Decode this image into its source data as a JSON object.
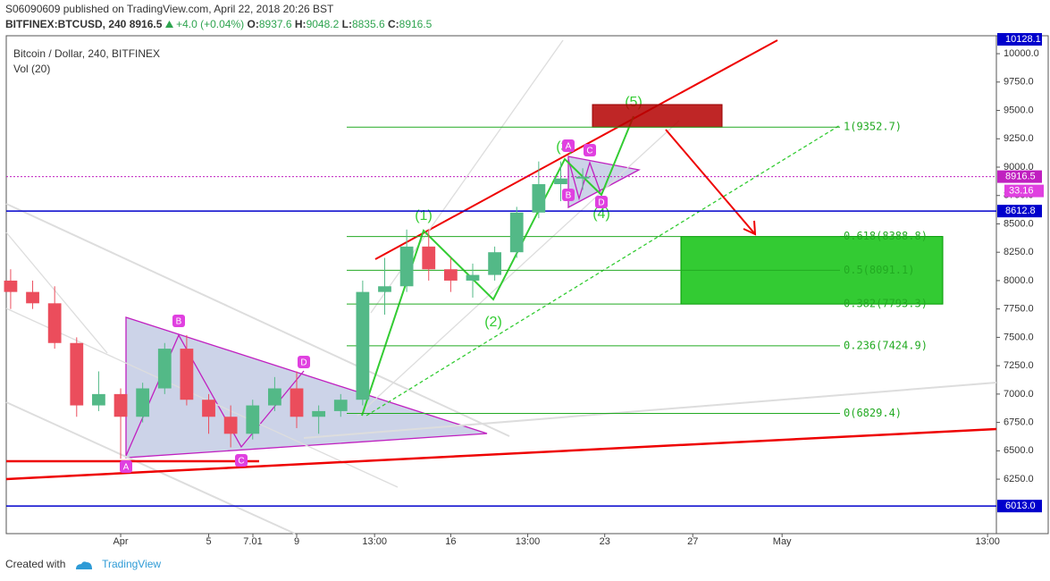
{
  "header": {
    "publisher": "S06090609 published on TradingView.com, April 22, 2018 20:26 BST",
    "symbol": "BITFINEX:BTCUSD, 240",
    "price": 8916.5,
    "change": "+4.0 (+0.04%)",
    "ohlc": [
      {
        "label": "O:",
        "value": 8937.6
      },
      {
        "label": "H:",
        "value": 9048.2
      },
      {
        "label": "L:",
        "value": 8835.6
      },
      {
        "label": "C:",
        "value": 8916.5
      }
    ]
  },
  "footer": {
    "created": "Created with",
    "brand": "TradingView"
  },
  "chart_data": {
    "type": "candlestick",
    "title": "Bitcoin / Dollar, 240, BITFINEX",
    "indicator": "Vol (20)",
    "up_color": "#53b987",
    "down_color": "#eb4d5c",
    "x": [
      -4,
      -3,
      -2,
      -1,
      0,
      1,
      2,
      3,
      4,
      5,
      6,
      7,
      8,
      9,
      10,
      11,
      12,
      13,
      14,
      15,
      16,
      17,
      18,
      19,
      20,
      21,
      22
    ],
    "open": [
      8000,
      7900,
      7800,
      7450,
      6900,
      7000,
      6800,
      7050,
      7400,
      6950,
      6800,
      6650,
      6900,
      7050,
      6800,
      6850,
      6950,
      7900,
      7950,
      8300,
      8100,
      8000,
      8050,
      8250,
      8600,
      8850,
      8900
    ],
    "high": [
      8100,
      8000,
      7950,
      7500,
      7200,
      7050,
      7100,
      7450,
      7520,
      7000,
      6900,
      6950,
      7150,
      7200,
      6900,
      7000,
      8000,
      8200,
      8450,
      8450,
      8200,
      8150,
      8300,
      8650,
      9050,
      9050,
      8990
    ],
    "low": [
      7750,
      7750,
      7400,
      6800,
      6850,
      6430,
      6750,
      7000,
      6900,
      6650,
      6530,
      6600,
      6850,
      6700,
      6650,
      6800,
      6900,
      7700,
      7900,
      8000,
      7900,
      7850,
      8000,
      8200,
      8550,
      8700,
      8800
    ],
    "close": [
      7900,
      7800,
      7450,
      6900,
      7000,
      6800,
      7050,
      7400,
      6950,
      6800,
      6650,
      6900,
      7050,
      6800,
      6850,
      6950,
      7900,
      7950,
      8300,
      8100,
      8000,
      8050,
      8250,
      8600,
      8850,
      8900,
      8916.5
    ],
    "xlim": [
      -4.2,
      40.8
    ],
    "xticks": [
      {
        "value": 1,
        "label": "Apr"
      },
      5,
      9,
      {
        "value": 12.54,
        "label": "13:00"
      },
      16,
      {
        "value": 19.5,
        "label": "13:00"
      },
      23,
      27,
      {
        "value": 31.06,
        "label": "May"
      },
      7.01,
      {
        "value": 40.4,
        "label": "13:00"
      }
    ],
    "ylim": [
      5770,
      10158
    ],
    "yticks": [
      {
        "value": 6250,
        "label": "6250.0"
      },
      {
        "value": 6500,
        "label": "6500.0"
      },
      {
        "value": 6750,
        "label": "6750.0"
      },
      {
        "value": 7000,
        "label": "7000.0"
      },
      {
        "value": 7250,
        "label": "7250.0"
      },
      {
        "value": 7500,
        "label": "7500.0"
      },
      {
        "value": 7750,
        "label": "7750.0"
      },
      {
        "value": 8000,
        "label": "8000.0"
      },
      {
        "value": 8250,
        "label": "8250.0"
      },
      {
        "value": 8500,
        "label": "8500.0"
      },
      {
        "value": 8750,
        "label": "8750.0"
      },
      {
        "value": 9000,
        "label": "9000.0"
      },
      {
        "value": 9250,
        "label": "9250.0"
      },
      {
        "value": 9500,
        "label": "9500.0"
      },
      {
        "value": 9750,
        "label": "9750.0"
      },
      {
        "value": 10000,
        "label": "10000.0"
      }
    ],
    "price_tags": [
      {
        "value": 10128.1,
        "label": "10128.1",
        "color": "#0000cc"
      },
      {
        "value": 8916.5,
        "label": "8916.5",
        "color": "#c020c0"
      },
      {
        "value": 8612.8,
        "label": "8612.8",
        "color": "#0000cc"
      },
      {
        "value": 6013,
        "label": "6013.0",
        "color": "#0000cc"
      }
    ],
    "volume_tag": "33.16",
    "hlines": [
      {
        "value": 8612.8,
        "color": "#0000cc"
      },
      {
        "value": 6013,
        "color": "#0000cc"
      },
      {
        "value": 8916.5,
        "color": "#c020c0"
      }
    ],
    "fib_levels": [
      {
        "value": 9352.7,
        "label": "1(9352.7)"
      },
      {
        "value": 8388.8,
        "label": "0.618(8388.8)"
      },
      {
        "value": 8091.1,
        "label": "0.5(8091.1)"
      },
      {
        "value": 7793.3,
        "label": "0.382(7793.3)"
      },
      {
        "value": 7424.9,
        "label": "0.236(7424.9)"
      },
      {
        "value": 6829.4,
        "label": "0(6829.4)"
      }
    ],
    "annotations": {
      "waves": [
        "(1)",
        "(2)",
        "(3)",
        "(4)",
        "(5)"
      ],
      "points": [
        "A",
        "B",
        "C",
        "D",
        "A",
        "B",
        "C",
        "D"
      ]
    }
  }
}
